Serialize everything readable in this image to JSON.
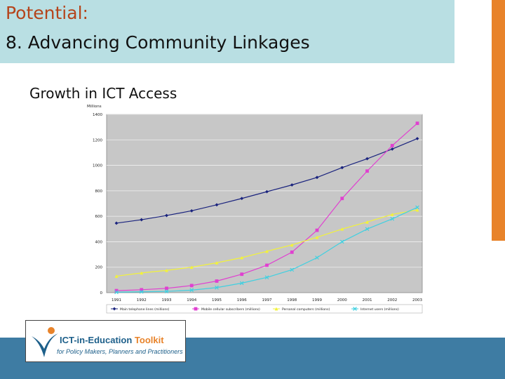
{
  "slide": {
    "title_line1": "Potential:",
    "title_line2": "8. Advancing Community Linkages",
    "subtitle": "Growth in ICT Access"
  },
  "logo": {
    "text_main": "ICT-in-Education",
    "text_accent": "Toolkit",
    "text_sub": "for Policy Makers, Planners and Practitioners",
    "icon": "check-swoosh-icon"
  },
  "colors": {
    "title_band": "#b9dfe3",
    "title_accent": "#b5441b",
    "side_bar": "#e8832a",
    "footer_band": "#3e7ca3"
  },
  "chart_data": {
    "type": "line",
    "ylabel": "Millions",
    "ylim": [
      0,
      1400
    ],
    "yticks": [
      0,
      200,
      400,
      600,
      800,
      1000,
      1200,
      1400
    ],
    "grid": true,
    "legend_position": "bottom",
    "x": [
      "1991",
      "1992",
      "1993",
      "1994",
      "1995",
      "1996",
      "1997",
      "1998",
      "1999",
      "2000",
      "2001",
      "2002",
      "2003"
    ],
    "series": [
      {
        "name": "Main telephone lines (millions)",
        "color": "#1a237e",
        "marker": "diamond",
        "values": [
          546,
          573,
          606,
          643,
          690,
          740,
          793,
          846,
          905,
          982,
          1052,
          1128,
          1210
        ]
      },
      {
        "name": "Mobile cellular subscribers (millions)",
        "color": "#e040d0",
        "marker": "square",
        "values": [
          16,
          23,
          34,
          56,
          91,
          145,
          215,
          318,
          490,
          740,
          955,
          1155,
          1330
        ]
      },
      {
        "name": "Personal computers (millions)",
        "color": "#f2f23a",
        "marker": "triangle",
        "values": [
          130,
          155,
          175,
          200,
          235,
          275,
          325,
          375,
          435,
          500,
          555,
          615,
          650
        ]
      },
      {
        "name": "Internet users (millions)",
        "color": "#40d0e0",
        "marker": "x",
        "values": [
          4,
          7,
          10,
          20,
          40,
          75,
          120,
          180,
          275,
          400,
          500,
          580,
          670
        ]
      }
    ]
  }
}
